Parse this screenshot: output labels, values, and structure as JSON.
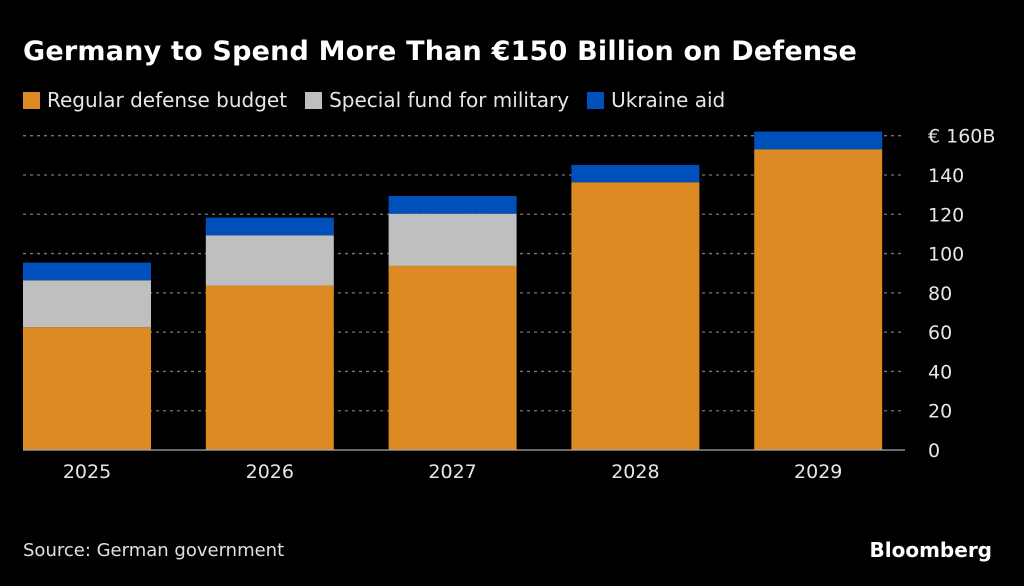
{
  "chart_data": {
    "type": "bar",
    "stacked": true,
    "title": "Germany to Spend More Than €150 Billion on Defense",
    "categories": [
      "2025",
      "2026",
      "2027",
      "2028",
      "2029"
    ],
    "series": [
      {
        "name": "Regular defense budget",
        "color": "#dc8a24",
        "values": [
          62.5,
          83.7,
          93.7,
          136.3,
          153.1
        ]
      },
      {
        "name": "Special fund for military",
        "color": "#bfbfbf",
        "values": [
          23.9,
          25.6,
          26.6,
          0,
          0
        ]
      },
      {
        "name": "Ukraine aid",
        "color": "#0050bb",
        "values": [
          9.0,
          9.0,
          9.0,
          8.8,
          9.0
        ]
      }
    ],
    "yticks": [
      0,
      20,
      40,
      60,
      80,
      100,
      120,
      140,
      160
    ],
    "ytick_labels": [
      "0",
      "20",
      "40",
      "60",
      "80",
      "100",
      "120",
      "140",
      "€ 160B"
    ],
    "ylim": [
      0,
      160
    ],
    "grid": true,
    "legend": "top-left",
    "source": "Source: German government",
    "brand": "Bloomberg"
  }
}
